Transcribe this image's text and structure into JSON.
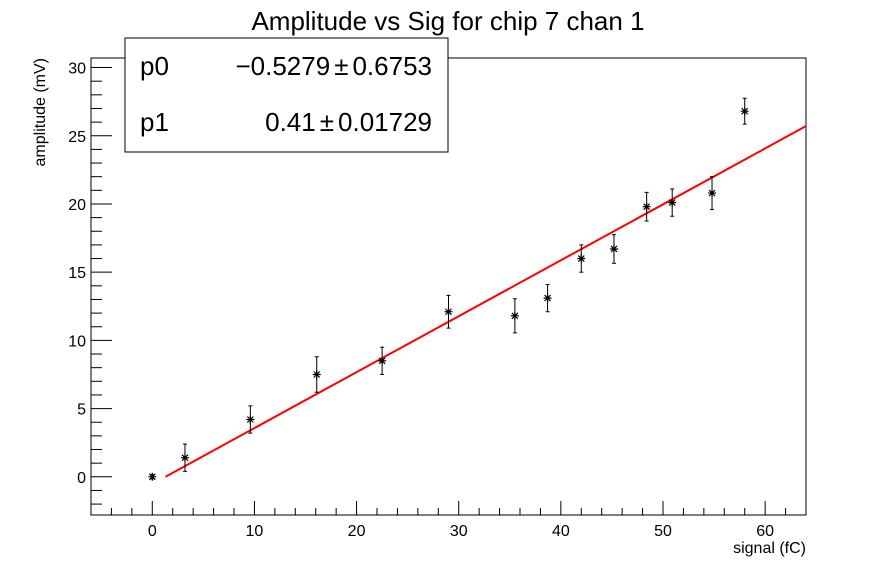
{
  "chart_data": {
    "type": "scatter",
    "title": "Amplitude vs Sig for chip 7 chan 1",
    "xlabel": "signal (fC)",
    "ylabel": "amplitude (mV)",
    "xlim": [
      -6,
      64
    ],
    "ylim": [
      -2.8,
      30.7
    ],
    "x_ticks": [
      0,
      10,
      20,
      30,
      40,
      50,
      60
    ],
    "y_ticks": [
      0,
      5,
      10,
      15,
      20,
      25,
      30
    ],
    "grid": false,
    "legend": "none",
    "series": [
      {
        "marker": "asterisk",
        "x": [
          0.0,
          3.2,
          9.6,
          16.1,
          22.5,
          29.0,
          35.5,
          38.7,
          42.0,
          45.2,
          48.4,
          50.9,
          54.8,
          58.0
        ],
        "y": [
          0.0,
          1.4,
          4.2,
          7.5,
          8.5,
          12.1,
          11.8,
          13.1,
          16.0,
          16.7,
          19.8,
          20.1,
          20.8,
          26.8
        ],
        "yerr": [
          0.15,
          1.0,
          1.0,
          1.3,
          1.0,
          1.2,
          1.25,
          1.0,
          1.0,
          1.05,
          1.05,
          1.0,
          1.2,
          0.95
        ]
      }
    ],
    "fit": {
      "function": "p0 + p1*x",
      "color": "#ff0000",
      "x_range": [
        1.3,
        64
      ],
      "p0": -0.5279,
      "p1": 0.41
    },
    "stats_box": {
      "rows": [
        {
          "name": "p0",
          "value": "−0.5279",
          "sep": "±",
          "error": "0.6753"
        },
        {
          "name": "p1",
          "value": "0.41",
          "sep": "±",
          "error": "0.01729"
        }
      ]
    }
  }
}
